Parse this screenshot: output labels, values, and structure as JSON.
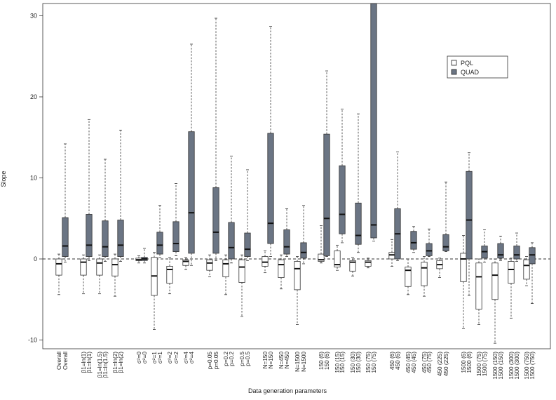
{
  "chart_data": {
    "type": "boxplot",
    "ylabel": "Slope",
    "xlabel": "Data generation parameters",
    "ylim": [
      -12,
      32
    ],
    "yticks": [
      -10,
      0,
      10,
      20,
      30
    ],
    "reference_line_y": 0,
    "legend": {
      "position": "top-right",
      "entries": [
        {
          "name": "PQL",
          "color": "#ffffff"
        },
        {
          "name": "QUAD",
          "color": "#6b7584"
        }
      ]
    },
    "series": [
      {
        "name": "PQL",
        "color": "#ffffff"
      },
      {
        "name": "QUAD",
        "color": "#6b7584"
      }
    ],
    "groups": [
      {
        "pair": [
          "Overall",
          "Overall"
        ],
        "boxes": [
          {
            "series": "PQL",
            "whisker_low": -4.4,
            "q1": -2.0,
            "median": -0.6,
            "q3": 0.0,
            "whisker_high": 0.6
          },
          {
            "series": "QUAD",
            "whisker_low": -0.4,
            "q1": 0.3,
            "median": 1.6,
            "q3": 5.1,
            "whisker_high": 14.2
          }
        ]
      },
      {
        "pair": [
          "β1=ln(1)",
          "β1=ln(1)"
        ],
        "boxes": [
          {
            "series": "PQL",
            "whisker_low": -4.3,
            "q1": -2.0,
            "median": -0.4,
            "q3": 0.0,
            "whisker_high": 0.5
          },
          {
            "series": "QUAD",
            "whisker_low": -0.2,
            "q1": 0.3,
            "median": 1.7,
            "q3": 5.5,
            "whisker_high": 17.2
          }
        ]
      },
      {
        "pair": [
          "β1=ln(1.5)",
          "β1=ln(1.5)"
        ],
        "boxes": [
          {
            "series": "PQL",
            "whisker_low": -4.3,
            "q1": -2.0,
            "median": -0.5,
            "q3": 0.0,
            "whisker_high": 0.5
          },
          {
            "series": "QUAD",
            "whisker_low": -0.3,
            "q1": 0.3,
            "median": 1.5,
            "q3": 4.7,
            "whisker_high": 12.3
          }
        ]
      },
      {
        "pair": [
          "β1=ln(2)",
          "β1=ln(2)"
        ],
        "boxes": [
          {
            "series": "PQL",
            "whisker_low": -4.6,
            "q1": -2.1,
            "median": -0.7,
            "q3": 0.0,
            "whisker_high": 0.6
          },
          {
            "series": "QUAD",
            "whisker_low": -0.3,
            "q1": 0.3,
            "median": 1.7,
            "q3": 4.8,
            "whisker_high": 15.9
          }
        ]
      },
      {
        "pair": [
          "σ²=0",
          "σ²=0"
        ],
        "boxes": [
          {
            "series": "PQL",
            "whisker_low": -0.5,
            "q1": -0.2,
            "median": -0.1,
            "q3": 0.1,
            "whisker_high": 0.4
          },
          {
            "series": "QUAD",
            "whisker_low": -0.5,
            "q1": -0.2,
            "median": 0.0,
            "q3": 0.2,
            "whisker_high": 1.3
          }
        ]
      },
      {
        "pair": [
          "σ²=1",
          "σ²=1"
        ],
        "boxes": [
          {
            "series": "PQL",
            "whisker_low": -8.7,
            "q1": -4.5,
            "median": -2.1,
            "q3": 0.2,
            "whisker_high": 0.8
          },
          {
            "series": "QUAD",
            "whisker_low": 0.2,
            "q1": 0.6,
            "median": 1.7,
            "q3": 3.3,
            "whisker_high": 6.6
          }
        ]
      },
      {
        "pair": [
          "σ²=2",
          "σ²=2"
        ],
        "boxes": [
          {
            "series": "PQL",
            "whisker_low": -4.3,
            "q1": -3.0,
            "median": -1.3,
            "q3": -0.9,
            "whisker_high": 0.2
          },
          {
            "series": "QUAD",
            "whisker_low": 0.4,
            "q1": 0.9,
            "median": 1.9,
            "q3": 4.6,
            "whisker_high": 9.3
          }
        ]
      },
      {
        "pair": [
          "σ²=4",
          "σ²=4"
        ],
        "boxes": [
          {
            "series": "PQL",
            "whisker_low": -1.3,
            "q1": -0.8,
            "median": -0.3,
            "q3": -0.1,
            "whisker_high": 0.2
          },
          {
            "series": "QUAD",
            "whisker_low": -0.8,
            "q1": 0.7,
            "median": 5.7,
            "q3": 15.7,
            "whisker_high": 26.5
          }
        ]
      },
      {
        "pair": [
          "p=0.05",
          "p=0.05"
        ],
        "boxes": [
          {
            "series": "PQL",
            "whisker_low": -2.2,
            "q1": -1.4,
            "median": -0.5,
            "q3": -0.1,
            "whisker_high": 0.5
          },
          {
            "series": "QUAD",
            "whisker_low": -0.2,
            "q1": 0.7,
            "median": 3.3,
            "q3": 8.8,
            "whisker_high": 29.7
          }
        ]
      },
      {
        "pair": [
          "p=0.2",
          "p=0.2"
        ],
        "boxes": [
          {
            "series": "PQL",
            "whisker_low": -4.4,
            "q1": -2.2,
            "median": -0.6,
            "q3": -0.1,
            "whisker_high": 0.5
          },
          {
            "series": "QUAD",
            "whisker_low": -0.5,
            "q1": 0.0,
            "median": 1.4,
            "q3": 4.5,
            "whisker_high": 12.7
          }
        ]
      },
      {
        "pair": [
          "p=0.5",
          "p=0.5"
        ],
        "boxes": [
          {
            "series": "PQL",
            "whisker_low": -7.1,
            "q1": -2.9,
            "median": -1.0,
            "q3": -0.1,
            "whisker_high": 0.5
          },
          {
            "series": "QUAD",
            "whisker_low": -0.2,
            "q1": 0.3,
            "median": 1.2,
            "q3": 3.2,
            "whisker_high": 11.0
          }
        ]
      },
      {
        "pair": [
          "N=150",
          "N=150"
        ],
        "boxes": [
          {
            "series": "PQL",
            "whisker_low": -1.7,
            "q1": -0.9,
            "median": -0.4,
            "q3": 0.3,
            "whisker_high": 1.0
          },
          {
            "series": "QUAD",
            "whisker_low": 0.3,
            "q1": 1.9,
            "median": 4.4,
            "q3": 15.5,
            "whisker_high": 28.7
          }
        ]
      },
      {
        "pair": [
          "N=450",
          "N=450"
        ],
        "boxes": [
          {
            "series": "PQL",
            "whisker_low": -3.7,
            "q1": -2.3,
            "median": -0.7,
            "q3": -0.1,
            "whisker_high": 0.5
          },
          {
            "series": "QUAD",
            "whisker_low": 0.3,
            "q1": 0.6,
            "median": 1.5,
            "q3": 3.6,
            "whisker_high": 6.2
          }
        ]
      },
      {
        "pair": [
          "N=1500",
          "N=1500"
        ],
        "boxes": [
          {
            "series": "PQL",
            "whisker_low": -8.1,
            "q1": -3.8,
            "median": -1.2,
            "q3": -0.3,
            "whisker_high": 0.3
          },
          {
            "series": "QUAD",
            "whisker_low": -0.6,
            "q1": 0.1,
            "median": 0.8,
            "q3": 2.0,
            "whisker_high": 6.6
          }
        ]
      },
      {
        "pair": [
          "150 (6)",
          "150 (6)"
        ],
        "boxes": [
          {
            "series": "PQL",
            "whisker_low": -0.5,
            "q1": -0.3,
            "median": -0.1,
            "q3": 0.6,
            "whisker_high": 4.1
          },
          {
            "series": "QUAD",
            "whisker_low": 0.3,
            "q1": 0.4,
            "median": 5.0,
            "q3": 15.4,
            "whisker_high": 23.2
          }
        ]
      },
      {
        "pair": [
          "150 (15)",
          "150 (15)"
        ],
        "boxes": [
          {
            "series": "PQL",
            "whisker_low": -1.4,
            "q1": -1.0,
            "median": -0.7,
            "q3": 1.0,
            "whisker_high": 1.7
          },
          {
            "series": "QUAD",
            "whisker_low": 2.0,
            "q1": 3.1,
            "median": 5.5,
            "q3": 11.5,
            "whisker_high": 18.5
          }
        ]
      },
      {
        "pair": [
          "150 (30)",
          "150 (30)"
        ],
        "boxes": [
          {
            "series": "PQL",
            "whisker_low": -2.1,
            "q1": -1.5,
            "median": -0.4,
            "q3": -0.2,
            "whisker_high": 0.2
          },
          {
            "series": "QUAD",
            "whisker_low": 0.8,
            "q1": 1.8,
            "median": 2.9,
            "q3": 6.9,
            "whisker_high": 17.9
          }
        ]
      },
      {
        "pair": [
          "150 (75)",
          "150 (75)"
        ],
        "boxes": [
          {
            "series": "PQL",
            "whisker_low": -1.1,
            "q1": -0.9,
            "median": -0.4,
            "q3": -0.2,
            "whisker_high": 0.1
          },
          {
            "series": "QUAD",
            "whisker_low": 2.2,
            "q1": 2.6,
            "median": 4.2,
            "q3": 32.0,
            "whisker_high": 32.0
          }
        ]
      },
      {
        "pair": [
          "450 (6)",
          "450 (6)"
        ],
        "boxes": [
          {
            "series": "PQL",
            "whisker_low": -0.9,
            "q1": 0.0,
            "median": 0.5,
            "q3": 0.8,
            "whisker_high": 2.4
          },
          {
            "series": "QUAD",
            "whisker_low": -0.2,
            "q1": 0.0,
            "median": 3.1,
            "q3": 6.2,
            "whisker_high": 13.2
          }
        ]
      },
      {
        "pair": [
          "450 (45)",
          "450 (45)"
        ],
        "boxes": [
          {
            "series": "PQL",
            "whisker_low": -4.4,
            "q1": -3.4,
            "median": -1.4,
            "q3": -1.0,
            "whisker_high": 0.0
          },
          {
            "series": "QUAD",
            "whisker_low": 0.8,
            "q1": 1.2,
            "median": 2.0,
            "q3": 3.4,
            "whisker_high": 4.0
          }
        ]
      },
      {
        "pair": [
          "450 (75)",
          "450 (75)"
        ],
        "boxes": [
          {
            "series": "PQL",
            "whisker_low": -4.6,
            "q1": -3.3,
            "median": -1.1,
            "q3": -0.4,
            "whisker_high": 0.3
          },
          {
            "series": "QUAD",
            "whisker_low": 0.3,
            "q1": 0.4,
            "median": 1.0,
            "q3": 1.9,
            "whisker_high": 3.7
          }
        ]
      },
      {
        "pair": [
          "450 (225)",
          "450 (225)"
        ],
        "boxes": [
          {
            "series": "PQL",
            "whisker_low": -2.3,
            "q1": -1.2,
            "median": -0.7,
            "q3": -0.2,
            "whisker_high": 0.1
          },
          {
            "series": "QUAD",
            "whisker_low": 0.9,
            "q1": 1.0,
            "median": 1.5,
            "q3": 3.0,
            "whisker_high": 9.5
          }
        ]
      },
      {
        "pair": [
          "1500 (6)",
          "1500 (6)"
        ],
        "boxes": [
          {
            "series": "PQL",
            "whisker_low": -8.6,
            "q1": -2.8,
            "median": 0.0,
            "q3": 0.7,
            "whisker_high": 2.9
          },
          {
            "series": "QUAD",
            "whisker_low": -4.5,
            "q1": 0.0,
            "median": 4.8,
            "q3": 10.8,
            "whisker_high": 13.1
          }
        ]
      },
      {
        "pair": [
          "1500 (75)",
          "1500 (75)"
        ],
        "boxes": [
          {
            "series": "PQL",
            "whisker_low": -8.1,
            "q1": -6.2,
            "median": -2.2,
            "q3": -0.5,
            "whisker_high": 0.0
          },
          {
            "series": "QUAD",
            "whisker_low": -0.4,
            "q1": 0.1,
            "median": 0.9,
            "q3": 1.6,
            "whisker_high": 3.6
          }
        ]
      },
      {
        "pair": [
          "1500 (150)",
          "1500 (150)"
        ],
        "boxes": [
          {
            "series": "PQL",
            "whisker_low": -10.4,
            "q1": -5.0,
            "median": -2.0,
            "q3": -0.5,
            "whisker_high": 0.0
          },
          {
            "series": "QUAD",
            "whisker_low": -0.2,
            "q1": 0.1,
            "median": 0.5,
            "q3": 1.9,
            "whisker_high": 2.8
          }
        ]
      },
      {
        "pair": [
          "1500 (300)",
          "1500 (300)"
        ],
        "boxes": [
          {
            "series": "PQL",
            "whisker_low": -7.3,
            "q1": -3.0,
            "median": -1.3,
            "q3": -0.3,
            "whisker_high": 0.1
          },
          {
            "series": "QUAD",
            "whisker_low": -0.3,
            "q1": 0.0,
            "median": 0.5,
            "q3": 1.6,
            "whisker_high": 3.2
          }
        ]
      },
      {
        "pair": [
          "1500 (750)",
          "1500 (750)"
        ],
        "boxes": [
          {
            "series": "PQL",
            "whisker_low": -3.3,
            "q1": -2.5,
            "median": -0.8,
            "q3": -0.1,
            "whisker_high": 0.3
          },
          {
            "series": "QUAD",
            "whisker_low": -5.5,
            "q1": -0.6,
            "median": 0.5,
            "q3": 1.4,
            "whisker_high": 2.0
          }
        ]
      }
    ]
  }
}
